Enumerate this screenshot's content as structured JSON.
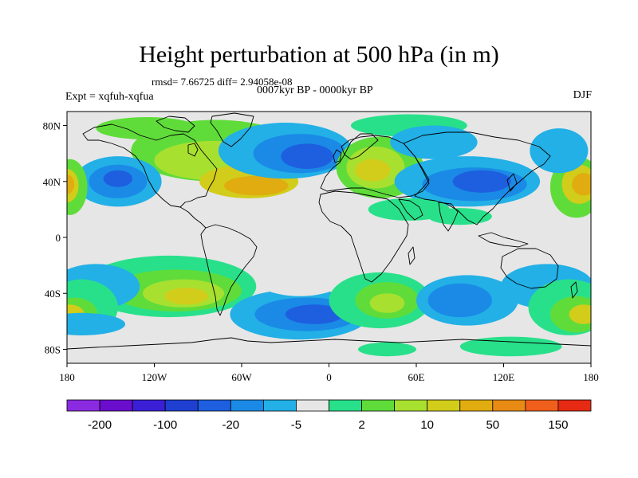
{
  "title": "Height perturbation at 500 hPa (in m)",
  "stats": "rmsd= 7.66725 diff= 2.94058e-08",
  "period": "0007kyr BP - 0000kyr BP",
  "experiment": "Expt = xqfuh-xqfua",
  "season": "DJF",
  "map": {
    "projection": "cylindrical-equidistant",
    "lon_range": [
      -180,
      180
    ],
    "lat_range": [
      -90,
      90
    ],
    "background_color": "#e6e6e6",
    "coastline_color": "#000000",
    "x_ticks": [
      {
        "lon": -180,
        "label": "180"
      },
      {
        "lon": -120,
        "label": "120W"
      },
      {
        "lon": -60,
        "label": "60W"
      },
      {
        "lon": 0,
        "label": "0"
      },
      {
        "lon": 60,
        "label": "60E"
      },
      {
        "lon": 120,
        "label": "120E"
      },
      {
        "lon": 180,
        "label": "180"
      }
    ],
    "y_ticks": [
      {
        "lat": 80,
        "label": "80N"
      },
      {
        "lat": 40,
        "label": "40N"
      },
      {
        "lat": 0,
        "label": "0"
      },
      {
        "lat": -40,
        "label": "40S"
      },
      {
        "lat": -80,
        "label": "80S"
      }
    ]
  },
  "colorbar": {
    "colors": [
      "#8a2be2",
      "#6a0dcc",
      "#3a1fd6",
      "#1f3fd0",
      "#1e5fe0",
      "#1a8ae6",
      "#22b0e6",
      "#e6e6e6",
      "#28e08a",
      "#5fdc3a",
      "#a8e030",
      "#d2cc1a",
      "#e0ac10",
      "#e88a14",
      "#f0601c",
      "#e62a14"
    ],
    "labels": [
      {
        "value": "-200",
        "boundary": 1
      },
      {
        "value": "-100",
        "boundary": 3
      },
      {
        "value": "-20",
        "boundary": 5
      },
      {
        "value": "-5",
        "boundary": 7
      },
      {
        "value": "2",
        "boundary": 9
      },
      {
        "value": "10",
        "boundary": 11
      },
      {
        "value": "50",
        "boundary": 13
      },
      {
        "value": "150",
        "boundary": 15
      }
    ]
  },
  "anomaly_blobs": [
    {
      "lon": -78,
      "lat": 62,
      "rlon": 58,
      "rlat": 22,
      "level": 9
    },
    {
      "lon": -80,
      "lat": 55,
      "rlon": 40,
      "rlat": 14,
      "level": 10
    },
    {
      "lon": -55,
      "lat": 40,
      "rlon": 34,
      "rlat": 12,
      "level": 11
    },
    {
      "lon": -50,
      "lat": 37,
      "rlon": 22,
      "rlat": 7,
      "level": 12
    },
    {
      "lon": -125,
      "lat": 78,
      "rlon": 35,
      "rlat": 8,
      "level": 9
    },
    {
      "lon": -145,
      "lat": 40,
      "rlon": 30,
      "rlat": 18,
      "level": 6
    },
    {
      "lon": -145,
      "lat": 40,
      "rlon": 20,
      "rlat": 12,
      "level": 5
    },
    {
      "lon": -145,
      "lat": 42,
      "rlon": 10,
      "rlat": 6,
      "level": 4
    },
    {
      "lon": -178,
      "lat": 36,
      "rlon": 12,
      "rlat": 20,
      "level": 9
    },
    {
      "lon": -180,
      "lat": 37,
      "rlon": 8,
      "rlat": 12,
      "level": 11
    },
    {
      "lon": -180,
      "lat": 38,
      "rlon": 5,
      "rlat": 7,
      "level": 12
    },
    {
      "lon": 170,
      "lat": 36,
      "rlon": 18,
      "rlat": 22,
      "level": 9
    },
    {
      "lon": 172,
      "lat": 38,
      "rlon": 12,
      "rlat": 14,
      "level": 11
    },
    {
      "lon": 175,
      "lat": 38,
      "rlon": 8,
      "rlat": 8,
      "level": 12
    },
    {
      "lon": 158,
      "lat": 62,
      "rlon": 20,
      "rlat": 16,
      "level": 6
    },
    {
      "lon": -30,
      "lat": 62,
      "rlon": 46,
      "rlat": 20,
      "level": 6
    },
    {
      "lon": -20,
      "lat": 60,
      "rlon": 32,
      "rlat": 14,
      "level": 5
    },
    {
      "lon": -15,
      "lat": 58,
      "rlon": 18,
      "rlat": 9,
      "level": 4
    },
    {
      "lon": 35,
      "lat": 50,
      "rlon": 30,
      "rlat": 22,
      "level": 9
    },
    {
      "lon": 32,
      "lat": 50,
      "rlon": 20,
      "rlat": 15,
      "level": 10
    },
    {
      "lon": 30,
      "lat": 48,
      "rlon": 12,
      "rlat": 8,
      "level": 11
    },
    {
      "lon": 55,
      "lat": 80,
      "rlon": 40,
      "rlat": 8,
      "level": 8
    },
    {
      "lon": 95,
      "lat": 40,
      "rlon": 50,
      "rlat": 18,
      "level": 6
    },
    {
      "lon": 100,
      "lat": 38,
      "rlon": 36,
      "rlat": 12,
      "level": 5
    },
    {
      "lon": 105,
      "lat": 40,
      "rlon": 20,
      "rlat": 8,
      "level": 4
    },
    {
      "lon": 72,
      "lat": 68,
      "rlon": 30,
      "rlat": 12,
      "level": 6
    },
    {
      "lon": 55,
      "lat": 20,
      "rlon": 28,
      "rlat": 8,
      "level": 8
    },
    {
      "lon": 90,
      "lat": 15,
      "rlon": 22,
      "rlat": 6,
      "level": 8
    },
    {
      "lon": -110,
      "lat": -35,
      "rlon": 60,
      "rlat": 22,
      "level": 8
    },
    {
      "lon": -105,
      "lat": -38,
      "rlon": 45,
      "rlat": 15,
      "level": 9
    },
    {
      "lon": -100,
      "lat": -40,
      "rlon": 28,
      "rlat": 10,
      "level": 10
    },
    {
      "lon": -98,
      "lat": -42,
      "rlon": 15,
      "rlat": 6,
      "level": 11
    },
    {
      "lon": -160,
      "lat": -35,
      "rlon": 30,
      "rlat": 16,
      "level": 6
    },
    {
      "lon": -170,
      "lat": -50,
      "rlon": 25,
      "rlat": 20,
      "level": 8
    },
    {
      "lon": -175,
      "lat": -55,
      "rlon": 16,
      "rlat": 12,
      "level": 9
    },
    {
      "lon": -178,
      "lat": -55,
      "rlon": 10,
      "rlat": 7,
      "level": 11
    },
    {
      "lon": -170,
      "lat": -62,
      "rlon": 30,
      "rlat": 8,
      "level": 6
    },
    {
      "lon": -20,
      "lat": -55,
      "rlon": 48,
      "rlat": 18,
      "level": 6
    },
    {
      "lon": -15,
      "lat": -55,
      "rlon": 36,
      "rlat": 12,
      "level": 5
    },
    {
      "lon": -10,
      "lat": -55,
      "rlon": 20,
      "rlat": 7,
      "level": 4
    },
    {
      "lon": -20,
      "lat": -30,
      "rlon": 30,
      "rlat": 12,
      "level": 7
    },
    {
      "lon": 35,
      "lat": -45,
      "rlon": 35,
      "rlat": 20,
      "level": 8
    },
    {
      "lon": 40,
      "lat": -45,
      "rlon": 22,
      "rlat": 13,
      "level": 9
    },
    {
      "lon": 40,
      "lat": -47,
      "rlon": 12,
      "rlat": 7,
      "level": 10
    },
    {
      "lon": 95,
      "lat": -45,
      "rlon": 35,
      "rlat": 18,
      "level": 6
    },
    {
      "lon": 90,
      "lat": -45,
      "rlon": 22,
      "rlat": 12,
      "level": 5
    },
    {
      "lon": 60,
      "lat": -15,
      "rlon": 40,
      "rlat": 10,
      "level": 7
    },
    {
      "lon": 150,
      "lat": -35,
      "rlon": 32,
      "rlat": 16,
      "level": 6
    },
    {
      "lon": 165,
      "lat": -50,
      "rlon": 28,
      "rlat": 20,
      "level": 8
    },
    {
      "lon": 170,
      "lat": -55,
      "rlon": 18,
      "rlat": 13,
      "level": 9
    },
    {
      "lon": 175,
      "lat": -55,
      "rlon": 10,
      "rlat": 7,
      "level": 11
    },
    {
      "lon": 125,
      "lat": -78,
      "rlon": 35,
      "rlat": 7,
      "level": 8
    },
    {
      "lon": 40,
      "lat": -80,
      "rlon": 20,
      "rlat": 5,
      "level": 8
    }
  ]
}
